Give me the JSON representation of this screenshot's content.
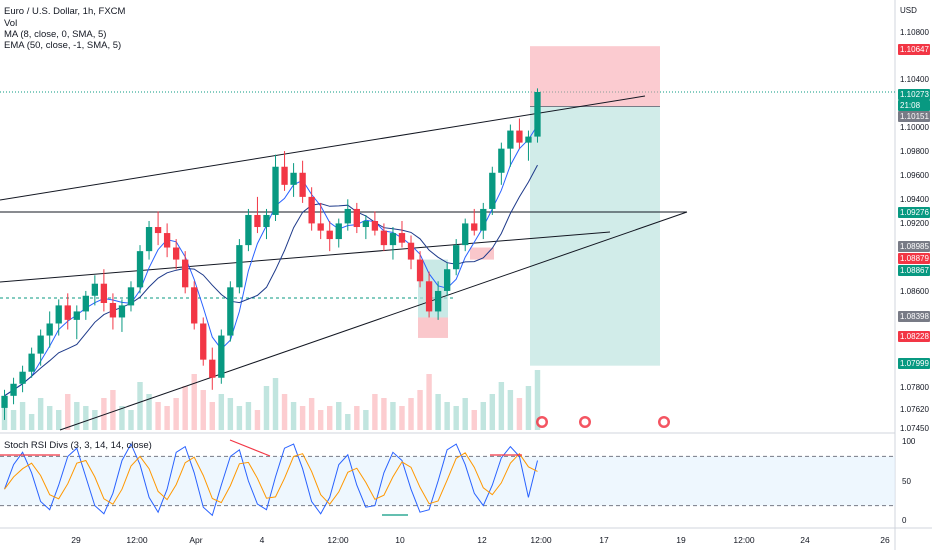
{
  "legend": {
    "symbol": "Euro / U.S. Dollar, 1h, FXCM",
    "vol": "Vol",
    "ma": "MA (8, close, 0, SMA, 5)",
    "ema": "EMA (50, close, -1, SMA, 5)"
  },
  "stoch_title": "Stoch RSI Divs (3, 3, 14, 14, close)",
  "currency": "USD",
  "price_axis": [
    "1.10800",
    "1.10400",
    "1.10000",
    "1.09800",
    "1.09600",
    "1.09400",
    "1.09200",
    "1.08600",
    "1.07800",
    "1.07620",
    "1.07450"
  ],
  "price_labels": {
    "tp": "1.10647",
    "last": "1.10273",
    "countdown": "21:08",
    "entry": "1.10151",
    "green1": "1.09276",
    "gray1": "1.08985",
    "red1": "1.08879",
    "green2": "1.08867",
    "gray2": "1.08398",
    "red2": "1.08228",
    "green3": "1.07999"
  },
  "stoch_axis": [
    "100",
    "50",
    "0"
  ],
  "time_axis": [
    "29",
    "12:00",
    "Apr",
    "4",
    "12:00",
    "10",
    "12",
    "12:00",
    "17",
    "19",
    "12:00",
    "24",
    "26"
  ],
  "colors": {
    "up": "#089981",
    "down": "#f23645",
    "ma": "#2962ff",
    "ema": "#1e3a8a",
    "stop_zone": "#f7a1a9",
    "target_zone": "#b2dfdb"
  },
  "chart_data": {
    "type": "candlestick",
    "symbol": "EUR/USD",
    "timeframe": "1h",
    "ylim": [
      1.0745,
      1.1095
    ],
    "ohlc": [
      [
        1.0765,
        1.078,
        1.0755,
        1.0775
      ],
      [
        1.0775,
        1.079,
        1.0768,
        1.0785
      ],
      [
        1.0785,
        1.08,
        1.0778,
        1.0795
      ],
      [
        1.0795,
        1.0815,
        1.079,
        1.081
      ],
      [
        1.081,
        1.083,
        1.08,
        1.0825
      ],
      [
        1.0825,
        1.0845,
        1.0815,
        1.0835
      ],
      [
        1.0835,
        1.0855,
        1.0825,
        1.085
      ],
      [
        1.085,
        1.086,
        1.083,
        1.0838
      ],
      [
        1.0838,
        1.085,
        1.0822,
        1.0845
      ],
      [
        1.0845,
        1.0862,
        1.0838,
        1.0858
      ],
      [
        1.0858,
        1.0875,
        1.085,
        1.0868
      ],
      [
        1.0868,
        1.088,
        1.0845,
        1.0852
      ],
      [
        1.0852,
        1.086,
        1.083,
        1.084
      ],
      [
        1.084,
        1.0855,
        1.0828,
        1.085
      ],
      [
        1.085,
        1.087,
        1.0845,
        1.0865
      ],
      [
        1.0865,
        1.09,
        1.086,
        1.0895
      ],
      [
        1.0895,
        1.092,
        1.0888,
        1.0915
      ],
      [
        1.0915,
        1.0928,
        1.09,
        1.091
      ],
      [
        1.091,
        1.0918,
        1.089,
        1.0898
      ],
      [
        1.0898,
        1.0905,
        1.088,
        1.0888
      ],
      [
        1.0888,
        1.0895,
        1.086,
        1.0865
      ],
      [
        1.0865,
        1.087,
        1.083,
        1.0835
      ],
      [
        1.0835,
        1.084,
        1.08,
        1.0805
      ],
      [
        1.0805,
        1.0815,
        1.078,
        1.079
      ],
      [
        1.079,
        1.083,
        1.0785,
        1.0825
      ],
      [
        1.0825,
        1.087,
        1.082,
        1.0865
      ],
      [
        1.0865,
        1.0905,
        1.086,
        1.09
      ],
      [
        1.09,
        1.093,
        1.0895,
        1.0925
      ],
      [
        1.0925,
        1.094,
        1.091,
        1.0915
      ],
      [
        1.0915,
        1.093,
        1.0905,
        1.0925
      ],
      [
        1.0925,
        1.0975,
        1.092,
        1.0965
      ],
      [
        1.0965,
        1.0978,
        1.0945,
        1.095
      ],
      [
        1.095,
        1.0968,
        1.094,
        1.096
      ],
      [
        1.096,
        1.097,
        1.0935,
        1.094
      ],
      [
        1.094,
        1.0948,
        1.0912,
        1.0918
      ],
      [
        1.0918,
        1.0935,
        1.0905,
        1.0912
      ],
      [
        1.0912,
        1.092,
        1.0895,
        1.0905
      ],
      [
        1.0905,
        1.0922,
        1.0898,
        1.0918
      ],
      [
        1.0918,
        1.0938,
        1.0912,
        1.093
      ],
      [
        1.093,
        1.0935,
        1.091,
        1.0915
      ],
      [
        1.0915,
        1.0925,
        1.0905,
        1.092
      ],
      [
        1.092,
        1.0928,
        1.0908,
        1.0912
      ],
      [
        1.0912,
        1.0918,
        1.0895,
        1.09
      ],
      [
        1.09,
        1.0915,
        1.0888,
        1.091
      ],
      [
        1.091,
        1.092,
        1.0898,
        1.0902
      ],
      [
        1.0902,
        1.0908,
        1.088,
        1.0888
      ],
      [
        1.0888,
        1.0895,
        1.0865,
        1.087
      ],
      [
        1.087,
        1.0878,
        1.084,
        1.0845
      ],
      [
        1.0845,
        1.087,
        1.0838,
        1.0862
      ],
      [
        1.0862,
        1.0885,
        1.0858,
        1.088
      ],
      [
        1.088,
        1.0905,
        1.0875,
        1.09
      ],
      [
        1.09,
        1.0922,
        1.0895,
        1.0918
      ],
      [
        1.0918,
        1.093,
        1.0908,
        1.0912
      ],
      [
        1.0912,
        1.0935,
        1.0905,
        1.093
      ],
      [
        1.093,
        1.0965,
        1.0925,
        1.096
      ],
      [
        1.096,
        1.0985,
        1.095,
        1.098
      ],
      [
        1.098,
        1.1,
        1.0965,
        1.0995
      ],
      [
        1.0995,
        1.1005,
        1.098,
        1.0985
      ],
      [
        1.0985,
        1.0995,
        1.097,
        1.099
      ],
      [
        1.099,
        1.103,
        1.0985,
        1.1027
      ]
    ],
    "volume": [
      6,
      5,
      7,
      4,
      8,
      6,
      5,
      9,
      7,
      6,
      5,
      8,
      10,
      6,
      5,
      12,
      9,
      7,
      6,
      8,
      11,
      14,
      10,
      7,
      9,
      8,
      6,
      7,
      5,
      11,
      13,
      9,
      7,
      6,
      8,
      5,
      6,
      7,
      4,
      6,
      5,
      9,
      8,
      7,
      6,
      8,
      10,
      14,
      9,
      7,
      6,
      8,
      5,
      7,
      9,
      12,
      10,
      8,
      11,
      15
    ],
    "stoch_rsi": [
      40,
      70,
      85,
      60,
      25,
      15,
      45,
      80,
      90,
      55,
      20,
      10,
      35,
      75,
      95,
      70,
      30,
      12,
      40,
      85,
      92,
      60,
      18,
      8,
      45,
      80,
      88,
      50,
      22,
      15,
      55,
      90,
      95,
      65,
      25,
      10,
      30,
      70,
      82,
      45,
      18,
      20,
      60,
      85,
      75,
      40,
      12,
      15,
      50,
      88,
      95,
      70,
      35,
      20,
      45,
      78,
      92,
      80,
      30,
      75
    ]
  }
}
